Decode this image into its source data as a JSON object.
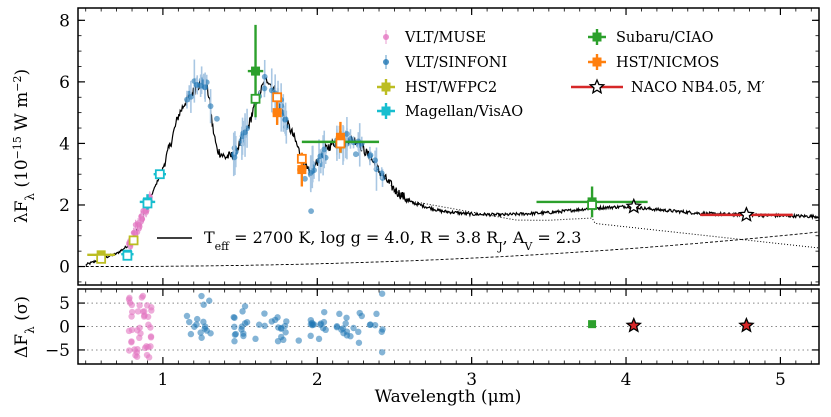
{
  "chart_data": {
    "type": "scatter",
    "xlabel": "Wavelength (μm)",
    "ylabel_top": "λF_λ (10^-15 W m^-2)",
    "ylabel_bottom": "ΔF_λ (σ)",
    "xlim": [
      0.45,
      5.25
    ],
    "ylim_top": [
      -0.6,
      8.4
    ],
    "ylim_bottom": [
      -8,
      8
    ],
    "xticks": [
      1,
      2,
      3,
      4,
      5
    ],
    "yticks_top": [
      0,
      2,
      4,
      6,
      8
    ],
    "yticks_bottom": [
      -5,
      0,
      5
    ],
    "legend": [
      {
        "label": "VLT/MUSE",
        "color": "#e377c2",
        "marker": "dot"
      },
      {
        "label": "VLT/SINFONI",
        "color": "#1f77b4",
        "marker": "dot"
      },
      {
        "label": "HST/WFPC2",
        "color": "#bcbd22",
        "marker": "open-square"
      },
      {
        "label": "Magellan/VisAO",
        "color": "#17becf",
        "marker": "open-square"
      },
      {
        "label": "Subaru/CIAO",
        "color": "#2ca02c",
        "marker": "open-square"
      },
      {
        "label": "HST/NICMOS",
        "color": "#ff7f0e",
        "marker": "open-square"
      },
      {
        "label": "NACO NB4.05, M′",
        "color": "#d62728",
        "marker": "star"
      }
    ],
    "model_label": "T_eff = 2700 K, log g = 4.0, R = 3.8 R_J, A_V = 2.3",
    "photometry": [
      {
        "instrument": "HST/WFPC2",
        "color": "#bcbd22",
        "x": 0.6,
        "xerr": 0.09,
        "y_model": 0.25,
        "y_obs": 0.38,
        "yerr": 0.05
      },
      {
        "instrument": "HST/WFPC2",
        "color": "#bcbd22",
        "x": 0.81,
        "xerr": 0.03,
        "y_model": 0.85,
        "y_obs": 0.85,
        "yerr": 0.08
      },
      {
        "instrument": "Magellan/VisAO",
        "color": "#17becf",
        "x": 0.77,
        "xerr": 0.04,
        "y_model": 0.35,
        "y_obs": 0.4,
        "yerr": 0.1
      },
      {
        "instrument": "Magellan/VisAO",
        "color": "#17becf",
        "x": 0.9,
        "xerr": 0.05,
        "y_model": 2.05,
        "y_obs": 2.1,
        "yerr": 0.25
      },
      {
        "instrument": "Magellan/VisAO",
        "color": "#17becf",
        "x": 0.98,
        "xerr": 0.04,
        "y_model": 3.0,
        "y_obs": 3.0,
        "yerr": 0.15
      },
      {
        "instrument": "Subaru/CIAO",
        "color": "#2ca02c",
        "x": 1.6,
        "xerr": 0.05,
        "y_model": 5.45,
        "y_obs": 6.35,
        "yerr": 1.5
      },
      {
        "instrument": "Subaru/CIAO",
        "color": "#2ca02c",
        "x": 2.15,
        "xerr": 0.25,
        "y_model": 4.0,
        "y_obs": 4.05,
        "yerr": 0.35
      },
      {
        "instrument": "Subaru/CIAO",
        "color": "#2ca02c",
        "x": 3.78,
        "xerr": 0.36,
        "y_model": 2.0,
        "y_obs": 2.1,
        "yerr": 0.5
      },
      {
        "instrument": "HST/NICMOS",
        "color": "#ff7f0e",
        "x": 1.74,
        "xerr": 0.03,
        "y_model": 5.5,
        "y_obs": 5.0,
        "yerr": 0.4
      },
      {
        "instrument": "HST/NICMOS",
        "color": "#ff7f0e",
        "x": 1.9,
        "xerr": 0.03,
        "y_model": 3.5,
        "y_obs": 3.15,
        "yerr": 0.55
      },
      {
        "instrument": "HST/NICMOS",
        "color": "#ff7f0e",
        "x": 2.15,
        "xerr": 0.03,
        "y_model": 4.0,
        "y_obs": 4.2,
        "yerr": 0.5
      },
      {
        "instrument": "NACO NB4.05",
        "color": "#d62728",
        "x": 4.05,
        "xerr": 0.03,
        "y_model": 1.95,
        "y_obs": 1.95,
        "yerr": 0.05
      },
      {
        "instrument": "NACO M′",
        "color": "#d62728",
        "x": 4.78,
        "xerr": 0.3,
        "y_model": 1.68,
        "y_obs": 1.68,
        "yerr": 0.05
      }
    ],
    "residual_photometry": [
      {
        "x": 3.78,
        "y": 0.5,
        "color": "#2ca02c",
        "marker": "square"
      },
      {
        "x": 4.05,
        "y": 0.2,
        "color": "#d62728",
        "marker": "star"
      },
      {
        "x": 4.78,
        "y": 0.2,
        "color": "#d62728",
        "marker": "star"
      }
    ]
  }
}
